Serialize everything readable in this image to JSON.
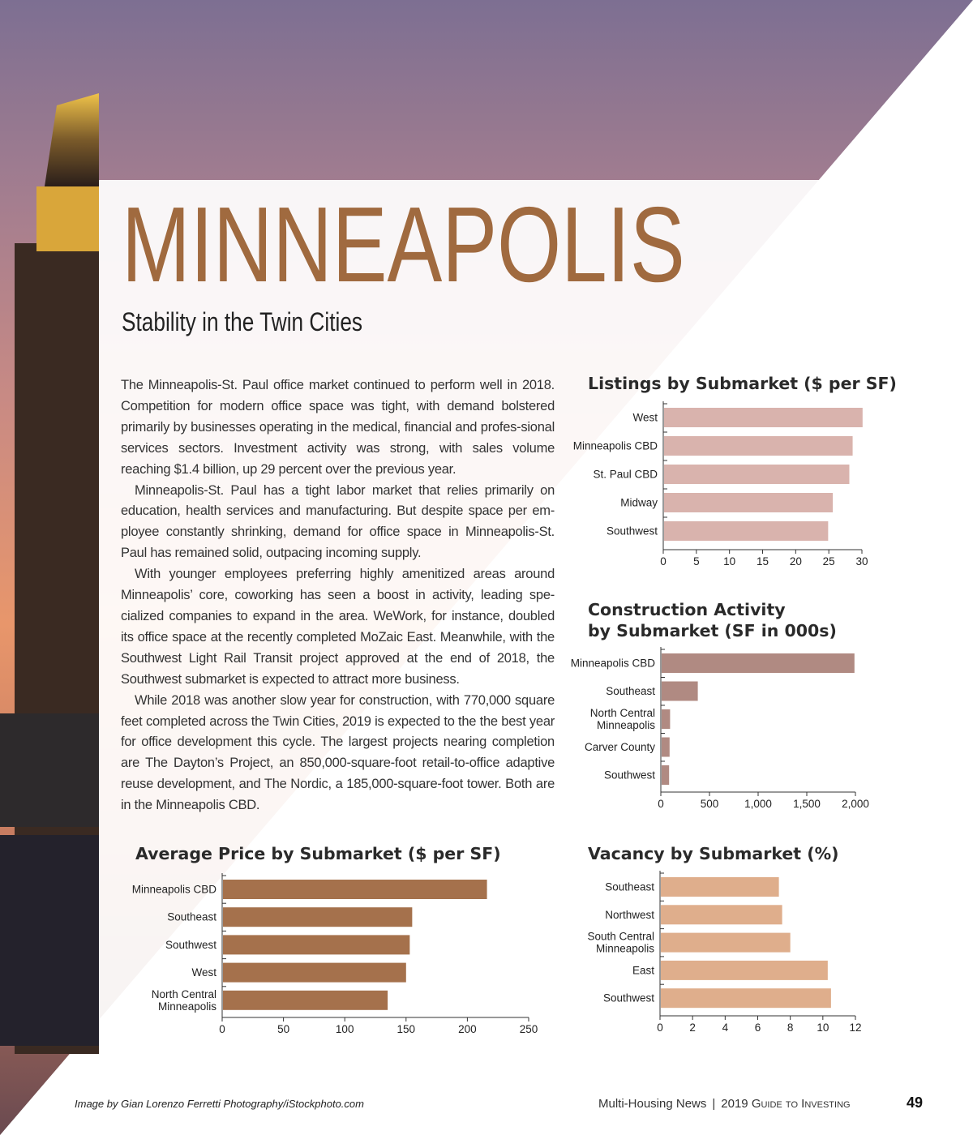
{
  "article": {
    "title": "MINNEAPOLIS",
    "subtitle": "Stability in the Twin Cities",
    "paragraphs": [
      "The Minneapolis-St. Paul office market continued to perform well in 2018. Competition for modern office space was tight, with demand bolstered primarily by businesses operating in the medical, financial and profes-sional services sectors. Investment activity was strong, with sales volume reaching $1.4 billion, up 29 percent over the previous year.",
      "Minneapolis-St. Paul has a tight labor market that relies primarily on education, health services and manufacturing. But despite space per em-ployee constantly shrinking, demand for office space in Minneapolis-St. Paul has remained solid, outpacing incoming supply.",
      "With younger employees preferring highly amenitized areas around Minneapolis’ core, coworking has seen a boost in activity, leading spe-cialized companies to expand in the area. WeWork, for instance, doubled its office space at the recently completed MoZaic East. Meanwhile, with the Southwest Light Rail Transit project approved at the end of 2018, the Southwest submarket is expected to attract more business.",
      "While 2018 was another slow year for construction, with 770,000 square feet completed across the Twin Cities, 2019 is expected to the the best year for office development this cycle. The largest projects nearing completion are The Dayton’s Project, an 850,000-square-foot retail-to-office adaptive reuse development, and The Nordic, a 185,000-square-foot tower. Both are in the Minneapolis CBD."
    ]
  },
  "chart_data": [
    {
      "id": "listings",
      "type": "bar",
      "orientation": "horizontal",
      "title": "Listings by Submarket ($ per SF)",
      "categories": [
        "West",
        "Minneapolis CBD",
        "St. Paul CBD",
        "Midway",
        "Southwest"
      ],
      "values": [
        30.1,
        28.6,
        28.1,
        25.6,
        24.9
      ],
      "xlim": [
        0,
        30
      ],
      "ticks": [
        0,
        5,
        10,
        15,
        20,
        25,
        30
      ],
      "tick_labels": [
        "0",
        "5",
        "10",
        "15",
        "20",
        "25",
        "30"
      ],
      "color": "#d9b3ad"
    },
    {
      "id": "construction",
      "type": "bar",
      "orientation": "horizontal",
      "title": "Construction Activity by Submarket (SF in 000s)",
      "title_lines": [
        "Construction Activity",
        "by Submarket (SF in 000s)"
      ],
      "categories": [
        "Minneapolis CBD",
        "Southeast",
        "North Central Minneapolis",
        "Carver County",
        "Southwest"
      ],
      "category_lines": [
        [
          "Minneapolis CBD"
        ],
        [
          "Southeast"
        ],
        [
          "North Central",
          "Minneapolis"
        ],
        [
          "Carver County"
        ],
        [
          "Southwest"
        ]
      ],
      "values": [
        1990,
        380,
        95,
        90,
        85
      ],
      "xlim": [
        0,
        2000
      ],
      "ticks": [
        0,
        500,
        1000,
        1500,
        2000
      ],
      "tick_labels": [
        "0",
        "500",
        "1,000",
        "1,500",
        "2,000"
      ],
      "color": "#b08a82"
    },
    {
      "id": "avg_price",
      "type": "bar",
      "orientation": "horizontal",
      "title": "Average Price by Submarket ($ per SF)",
      "categories": [
        "Minneapolis CBD",
        "Southeast",
        "Southwest",
        "West",
        "North Central Minneapolis"
      ],
      "category_lines": [
        [
          "Minneapolis CBD"
        ],
        [
          "Southeast"
        ],
        [
          "Southwest"
        ],
        [
          "West"
        ],
        [
          "North Central",
          "Minneapolis"
        ]
      ],
      "values": [
        216,
        155,
        153,
        150,
        135
      ],
      "xlim": [
        0,
        250
      ],
      "ticks": [
        0,
        50,
        100,
        150,
        200,
        250
      ],
      "tick_labels": [
        "0",
        "50",
        "100",
        "150",
        "200",
        "250"
      ],
      "color": "#a5714c"
    },
    {
      "id": "vacancy",
      "type": "bar",
      "orientation": "horizontal",
      "title": "Vacancy by Submarket (%)",
      "categories": [
        "Southeast",
        "Northwest",
        "South Central Minneapolis",
        "East",
        "Southwest"
      ],
      "category_lines": [
        [
          "Southeast"
        ],
        [
          "Northwest"
        ],
        [
          "South Central",
          "Minneapolis"
        ],
        [
          "East"
        ],
        [
          "Southwest"
        ]
      ],
      "values": [
        7.3,
        7.5,
        8.0,
        10.3,
        10.5
      ],
      "xlim": [
        0,
        12
      ],
      "ticks": [
        0,
        2,
        4,
        6,
        8,
        10,
        12
      ],
      "tick_labels": [
        "0",
        "2",
        "4",
        "6",
        "8",
        "10",
        "12"
      ],
      "color": "#dfae8c"
    }
  ],
  "footer": {
    "credit": "Image by Gian Lorenzo Ferretti Photography/iStockphoto.com",
    "publication": "Multi-Housing News",
    "separator": "|",
    "guide": "2019 Guide to Investing",
    "page_number": "49"
  }
}
